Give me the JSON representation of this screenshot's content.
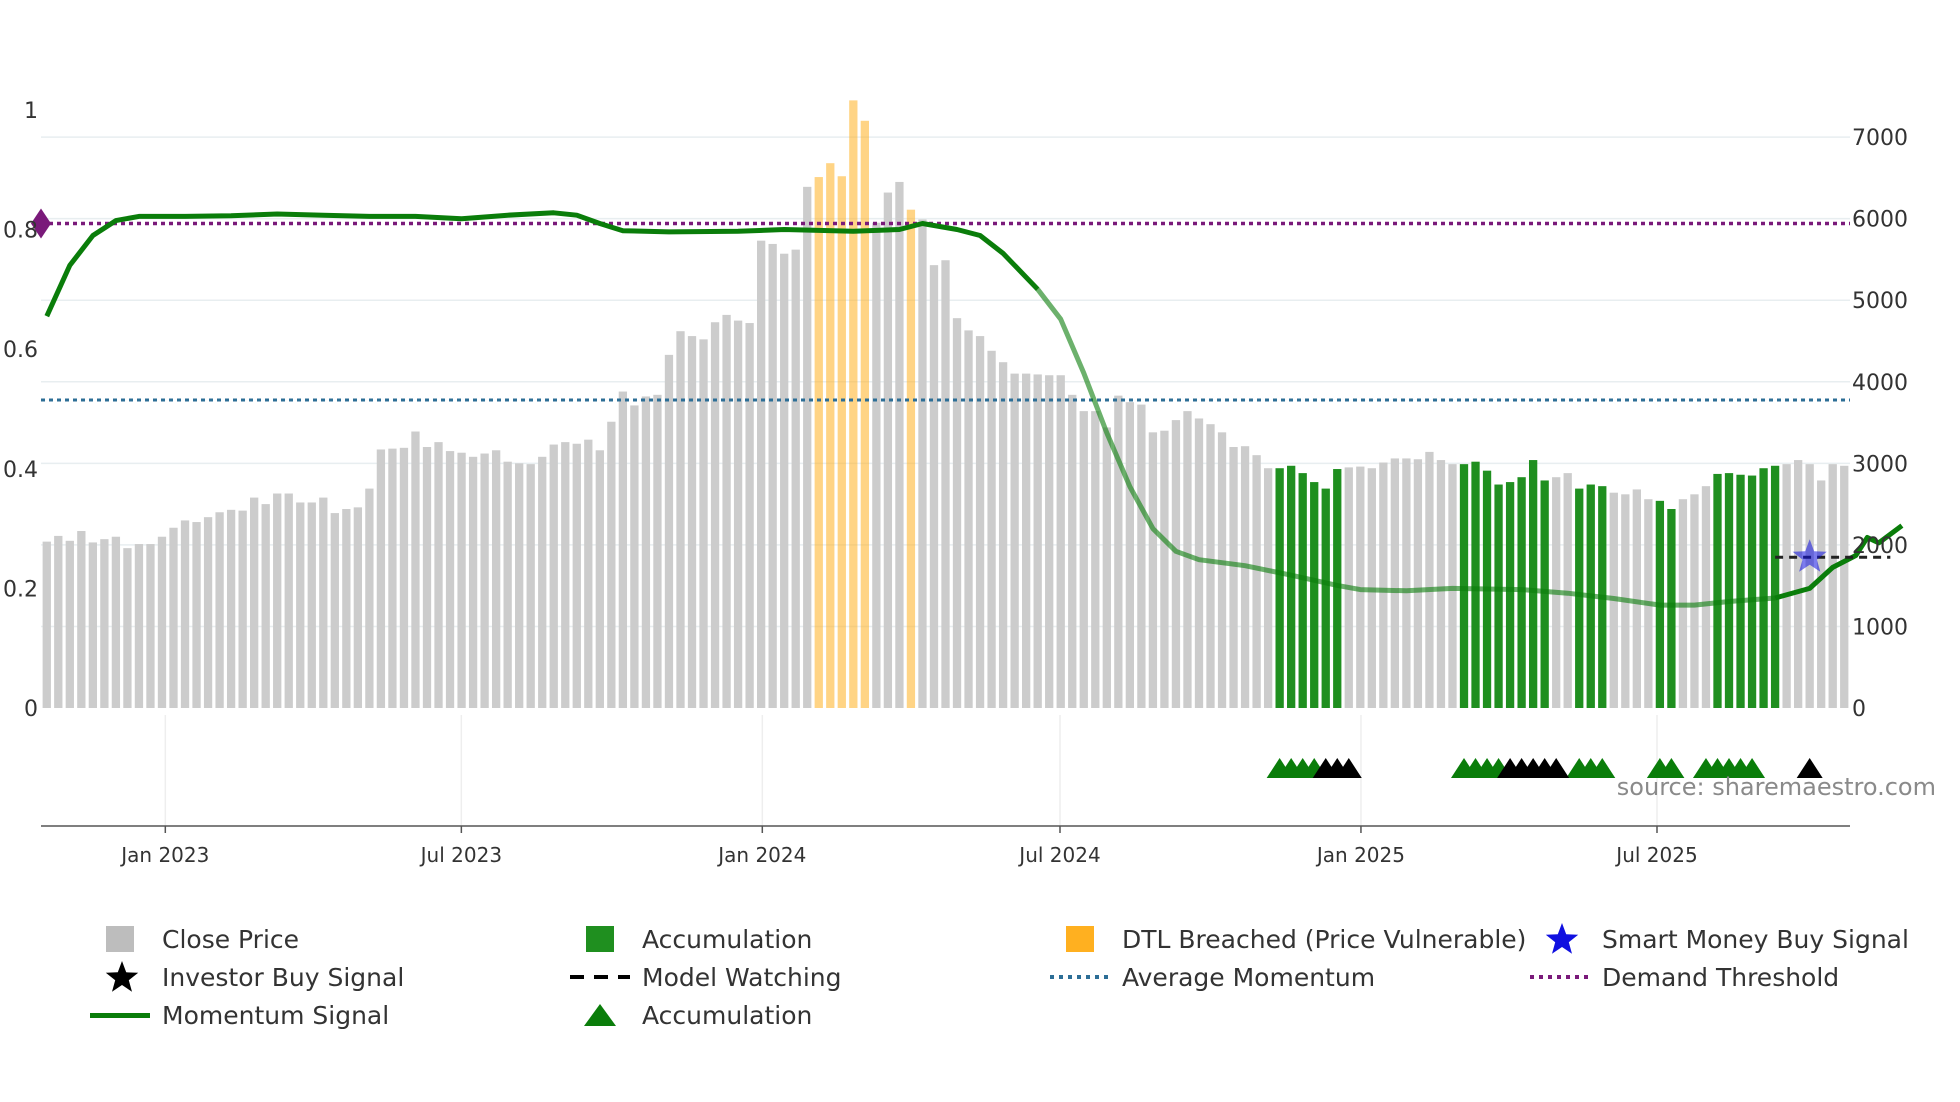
{
  "chart_data": {
    "type": "bar",
    "title": "",
    "xlabel": "",
    "ylabel_left": "",
    "ylabel_right": "",
    "source": "source: sharemaestro.com",
    "left_axis": {
      "range": [
        0,
        1.05
      ],
      "ticks": [
        0,
        0.2,
        0.4,
        0.6,
        0.8,
        1
      ],
      "tick_labels": [
        "0",
        "0.2",
        "0.4",
        "0.6",
        "0.8",
        "1"
      ]
    },
    "right_axis": {
      "range": [
        0,
        7700
      ],
      "ticks": [
        0,
        1000,
        2000,
        3000,
        4000,
        5000,
        6000,
        7000
      ],
      "tick_labels": [
        "0",
        "1000",
        "2000",
        "3000",
        "4000",
        "5000",
        "6000",
        "7000"
      ]
    },
    "x_axis": {
      "start": "2022-10-17",
      "end": "2025-10-27",
      "ticks": [
        {
          "date": "2023-01-01",
          "label": "Jan 2023"
        },
        {
          "date": "2023-07-01",
          "label": "Jul 2023"
        },
        {
          "date": "2024-01-01",
          "label": "Jan 2024"
        },
        {
          "date": "2024-07-01",
          "label": "Jul 2024"
        },
        {
          "date": "2025-01-01",
          "label": "Jan 2025"
        },
        {
          "date": "2025-07-01",
          "label": "Jul 2025"
        }
      ]
    },
    "close_price": {
      "name": "Close Price",
      "start": "2022-10-17",
      "interval_days": 7,
      "values": [
        2040,
        2110,
        2050,
        2170,
        2030,
        2070,
        2100,
        1960,
        2010,
        2010,
        2100,
        2210,
        2300,
        2280,
        2340,
        2400,
        2430,
        2420,
        2580,
        2500,
        2630,
        2630,
        2520,
        2520,
        2580,
        2390,
        2440,
        2460,
        2690,
        3170,
        3180,
        3190,
        3390,
        3200,
        3260,
        3150,
        3130,
        3080,
        3120,
        3160,
        3020,
        3000,
        2990,
        3080,
        3230,
        3260,
        3240,
        3290,
        3160,
        3510,
        3880,
        3710,
        3820,
        3840,
        4330,
        4620,
        4560,
        4520,
        4730,
        4820,
        4750,
        4720,
        5730,
        5690,
        5570,
        5620,
        6390,
        6510,
        6680,
        6520,
        7450,
        7200,
        5950,
        6320,
        6450,
        6110,
        5990,
        5430,
        5490,
        4780,
        4630,
        4560,
        4380,
        4240,
        4100,
        4100,
        4090,
        4080,
        4080,
        3840,
        3640,
        3640,
        3440,
        3830,
        3750,
        3720,
        3380,
        3400,
        3530,
        3640,
        3550,
        3480,
        3380,
        3200,
        3210,
        3100,
        2940,
        2940,
        2970,
        2880,
        2770,
        2690,
        2930,
        2950,
        2960,
        2940,
        3010,
        3060,
        3060,
        3050,
        3140,
        3040,
        2990,
        2990,
        3020,
        2910,
        2740,
        2770,
        2830,
        3040,
        2790,
        2830,
        2880,
        2690,
        2740,
        2720,
        2640,
        2620,
        2680,
        2560,
        2540,
        2440,
        2560,
        2620,
        2720,
        2870,
        2880,
        2860,
        2850,
        2940,
        2970,
        2990,
        3040,
        2990,
        2790,
        2990,
        2970
      ]
    },
    "accumulation_bars": {
      "name": "Accumulation",
      "indices": [
        107,
        108,
        109,
        110,
        111,
        112,
        123,
        124,
        125,
        126,
        127,
        128,
        129,
        130,
        133,
        134,
        135,
        140,
        141,
        145,
        146,
        147,
        148,
        149,
        150
      ],
      "color": "#1f8f1f"
    },
    "dtl_breached_bars": {
      "name": "DTL Breached (Price Vulnerable)",
      "indices": [
        67,
        68,
        69,
        70,
        71,
        75
      ],
      "color": "#ffb020"
    },
    "momentum_signal": {
      "name": "Momentum Signal",
      "color": "#0a7d0a",
      "points": [
        [
          0,
          0.655
        ],
        [
          2,
          0.74
        ],
        [
          4,
          0.79
        ],
        [
          6,
          0.815
        ],
        [
          8,
          0.822
        ],
        [
          12,
          0.822
        ],
        [
          16,
          0.823
        ],
        [
          20,
          0.826
        ],
        [
          24,
          0.824
        ],
        [
          28,
          0.822
        ],
        [
          32,
          0.822
        ],
        [
          36,
          0.818
        ],
        [
          40,
          0.824
        ],
        [
          44,
          0.828
        ],
        [
          46,
          0.824
        ],
        [
          48,
          0.81
        ],
        [
          50,
          0.798
        ],
        [
          54,
          0.796
        ],
        [
          60,
          0.797
        ],
        [
          64,
          0.8
        ],
        [
          70,
          0.797
        ],
        [
          74,
          0.8
        ],
        [
          76,
          0.81
        ],
        [
          79,
          0.8
        ],
        [
          81,
          0.79
        ],
        [
          83,
          0.76
        ],
        [
          86,
          0.7
        ],
        [
          88,
          0.65
        ],
        [
          90,
          0.56
        ],
        [
          92,
          0.46
        ],
        [
          94,
          0.37
        ],
        [
          96,
          0.3
        ],
        [
          98,
          0.262
        ],
        [
          100,
          0.248
        ],
        [
          104,
          0.238
        ],
        [
          108,
          0.222
        ],
        [
          112,
          0.205
        ],
        [
          114,
          0.198
        ],
        [
          118,
          0.196
        ],
        [
          122,
          0.2
        ],
        [
          128,
          0.198
        ],
        [
          132,
          0.192
        ],
        [
          136,
          0.183
        ],
        [
          140,
          0.172
        ],
        [
          143,
          0.172
        ],
        [
          146,
          0.178
        ],
        [
          150,
          0.184
        ],
        [
          153,
          0.2
        ],
        [
          155,
          0.235
        ],
        [
          157,
          0.255
        ],
        [
          158,
          0.285
        ],
        [
          159,
          0.276
        ],
        [
          161,
          0.305
        ]
      ],
      "faded_range": [
        87,
        150
      ]
    },
    "average_momentum": {
      "name": "Average Momentum",
      "value": 0.515,
      "color": "#2c6e96"
    },
    "demand_threshold": {
      "name": "Demand Threshold",
      "value": 0.81,
      "color": "#7a1a7a"
    },
    "model_watching": {
      "name": "Model Watching",
      "from_index": 150,
      "to_index": 160,
      "value": 0.252
    },
    "smart_money_buy_signal": {
      "name": "Smart Money Buy Signal",
      "index": 153,
      "value": 0.252,
      "color": "#1010e0"
    },
    "accumulation_markers": {
      "name": "Accumulation",
      "green": [
        107,
        108,
        109,
        110,
        123,
        124,
        125,
        126,
        133,
        134,
        135,
        140,
        141,
        144,
        145,
        146,
        147,
        148
      ],
      "black": [
        111,
        112,
        113,
        127,
        128,
        129,
        130,
        131,
        153
      ]
    },
    "investor_buy_signal": {
      "name": "Investor Buy Signal"
    }
  },
  "legend": {
    "close_price": "Close Price",
    "accumulation": "Accumulation",
    "dtl_breached": "DTL Breached (Price Vulnerable)",
    "smart_money": "Smart Money Buy Signal",
    "investor_buy": "Investor Buy Signal",
    "model_watching": "Model Watching",
    "average_momentum": "Average Momentum",
    "demand_threshold": "Demand Threshold",
    "momentum_signal": "Momentum Signal",
    "accumulation_marker": "Accumulation"
  }
}
